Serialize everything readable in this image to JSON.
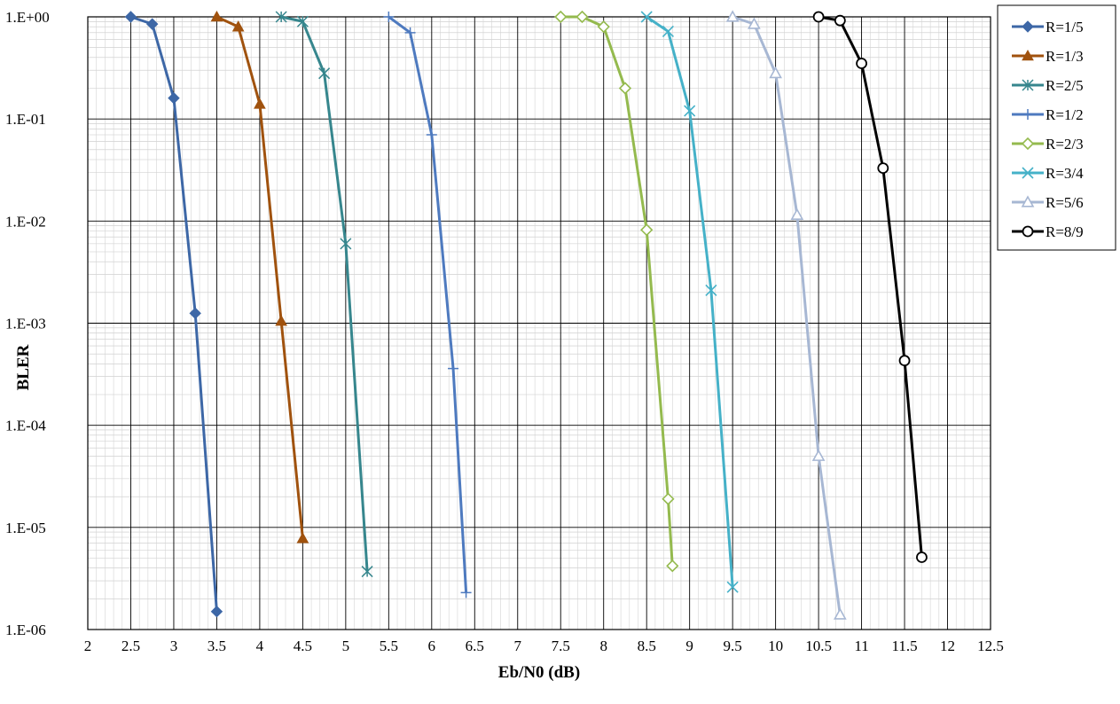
{
  "chart_data": {
    "type": "line",
    "title": "",
    "xlabel": "Eb/N0 (dB)",
    "ylabel": "BLER",
    "x_scale": "linear",
    "y_scale": "log",
    "xlim": [
      2,
      12.5
    ],
    "ylim": [
      1e-06,
      1
    ],
    "x_ticks": [
      2,
      2.5,
      3,
      3.5,
      4,
      4.5,
      5,
      5.5,
      6,
      6.5,
      7,
      7.5,
      8,
      8.5,
      9,
      9.5,
      10,
      10.5,
      11,
      11.5,
      12,
      12.5
    ],
    "x_tick_labels": [
      "2",
      "2.5",
      "3",
      "3.5",
      "4",
      "4.5",
      "5",
      "5.5",
      "6",
      "6.5",
      "7",
      "7.5",
      "8",
      "8.5",
      "9",
      "9.5",
      "10",
      "10.5",
      "11",
      "11.5",
      "12",
      "12.5"
    ],
    "y_ticks": [
      1,
      0.1,
      0.01,
      0.001,
      0.0001,
      1e-05,
      1e-06
    ],
    "y_tick_labels": [
      "1.E+00",
      "1.E-01",
      "1.E-02",
      "1.E-03",
      "1.E-04",
      "1.E-05",
      "1.E-06"
    ],
    "grid": true,
    "legend_position": "right",
    "series": [
      {
        "name": "R=1/5",
        "color": "#3d67a6",
        "marker": "diamond",
        "x": [
          2.5,
          2.75,
          3.0,
          3.25,
          3.5
        ],
        "y": [
          1.0,
          0.85,
          0.16,
          0.00125,
          1.5e-06
        ]
      },
      {
        "name": "R=1/3",
        "color": "#a0520e",
        "marker": "triangle",
        "x": [
          3.5,
          3.75,
          4.0,
          4.25,
          4.5
        ],
        "y": [
          1.0,
          0.8,
          0.14,
          0.00105,
          7.8e-06
        ]
      },
      {
        "name": "R=2/5",
        "color": "#36868d",
        "marker": "asterisk",
        "x": [
          4.25,
          4.5,
          4.75,
          5.0,
          5.25
        ],
        "y": [
          1.0,
          0.9,
          0.28,
          0.006,
          3.7e-06
        ]
      },
      {
        "name": "R=1/2",
        "color": "#4e7abf",
        "marker": "plus",
        "x": [
          5.5,
          5.75,
          6.0,
          6.25,
          6.4
        ],
        "y": [
          1.0,
          0.7,
          0.07,
          0.00036,
          2.3e-06
        ]
      },
      {
        "name": "R=2/3",
        "color": "#94ba4e",
        "marker": "diamond-open",
        "x": [
          7.5,
          7.75,
          8.0,
          8.25,
          8.5,
          8.75,
          8.8
        ],
        "y": [
          1.0,
          1.0,
          0.8,
          0.2,
          0.0082,
          1.9e-05,
          4.2e-06
        ]
      },
      {
        "name": "R=3/4",
        "color": "#45b1c8",
        "marker": "x",
        "x": [
          8.5,
          8.75,
          9.0,
          9.25,
          9.5
        ],
        "y": [
          1.0,
          0.72,
          0.12,
          0.0021,
          2.6e-06
        ]
      },
      {
        "name": "R=5/6",
        "color": "#a7b7d3",
        "marker": "triangle-open",
        "x": [
          9.5,
          9.75,
          10.0,
          10.25,
          10.5,
          10.75
        ],
        "y": [
          1.0,
          0.85,
          0.28,
          0.0115,
          5e-05,
          1.4e-06
        ]
      },
      {
        "name": "R=8/9",
        "color": "#000000",
        "marker": "circle-open",
        "x": [
          10.5,
          10.75,
          11.0,
          11.25,
          11.5,
          11.7
        ],
        "y": [
          1.0,
          0.92,
          0.35,
          0.033,
          0.00043,
          5.1e-06
        ]
      }
    ]
  }
}
